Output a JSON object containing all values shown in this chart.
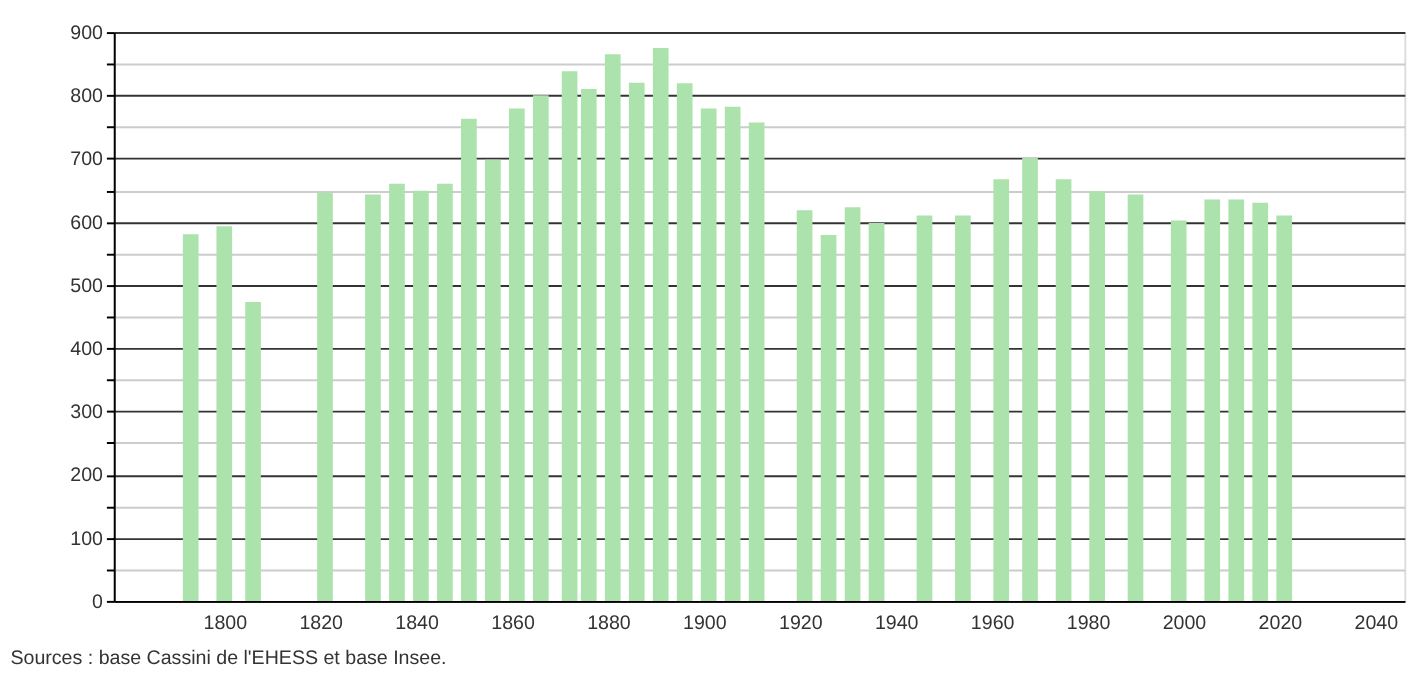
{
  "chart_data": {
    "type": "bar",
    "x": [
      1793,
      1800,
      1806,
      1821,
      1831,
      1836,
      1841,
      1846,
      1851,
      1856,
      1861,
      1866,
      1872,
      1876,
      1881,
      1886,
      1891,
      1896,
      1901,
      1906,
      1911,
      1921,
      1926,
      1931,
      1936,
      1946,
      1954,
      1962,
      1968,
      1975,
      1982,
      1990,
      1999,
      2006,
      2011,
      2016,
      2021
    ],
    "values": [
      580,
      593,
      473,
      646,
      643,
      660,
      649,
      660,
      763,
      698,
      779,
      800,
      838,
      810,
      865,
      820,
      875,
      819,
      779,
      782,
      757,
      618,
      579,
      623,
      598,
      610,
      610,
      667,
      701,
      667,
      648,
      643,
      602,
      635,
      635,
      630,
      610
    ],
    "color": "#ace3ac",
    "xlim": [
      1779,
      2044
    ],
    "xticks": [
      1800,
      1820,
      1840,
      1860,
      1880,
      1900,
      1920,
      1940,
      1960,
      1980,
      2000,
      2020,
      2040
    ],
    "ylim": [
      0,
      900
    ],
    "yticks": [
      0,
      {
        "value": 50,
        "label": null
      },
      100,
      {
        "value": 150,
        "label": null
      },
      200,
      {
        "value": 250,
        "label": null
      },
      300,
      {
        "value": 350,
        "label": null
      },
      400,
      {
        "value": 450,
        "label": null
      },
      500,
      {
        "value": 550,
        "label": null
      },
      600,
      {
        "value": 650,
        "label": null
      },
      700,
      {
        "value": 750,
        "label": null
      },
      800,
      {
        "value": 850,
        "label": null
      },
      900
    ],
    "grid": "y",
    "annotations": [
      "Sources : base Cassini de l'EHESS et base Insee."
    ]
  }
}
